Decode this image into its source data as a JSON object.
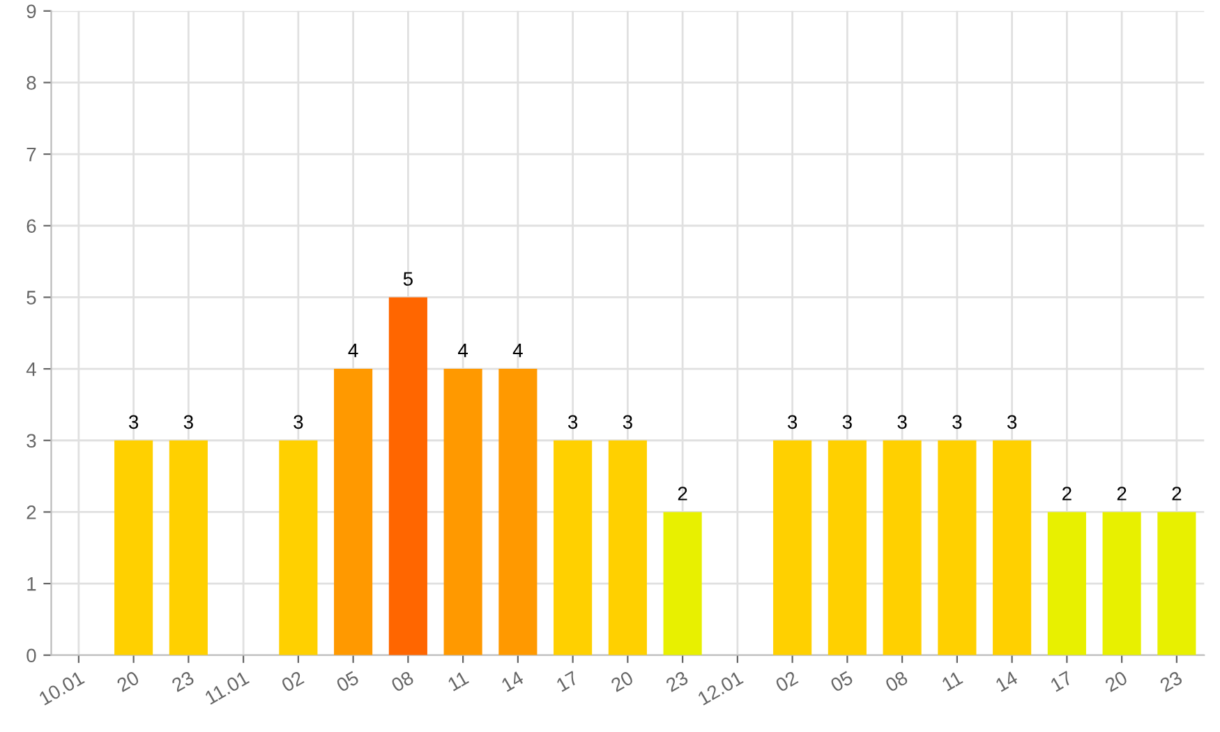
{
  "chart_data": {
    "type": "bar",
    "categories": [
      "10.01",
      "20",
      "23",
      "11.01",
      "02",
      "05",
      "08",
      "11",
      "14",
      "17",
      "20",
      "23",
      "12.01",
      "02",
      "05",
      "08",
      "11",
      "14",
      "17",
      "20",
      "23"
    ],
    "values": [
      null,
      3,
      3,
      null,
      3,
      4,
      5,
      4,
      4,
      3,
      3,
      2,
      null,
      3,
      3,
      3,
      3,
      3,
      2,
      2,
      2
    ],
    "colors": [
      "#ffd000",
      "#ffd000",
      "#ffd000",
      "#ffd000",
      "#ffd000",
      "#ff9900",
      "#ff6600",
      "#ff9900",
      "#ff9900",
      "#ffd000",
      "#ffd000",
      "#e8f000",
      "#ffd000",
      "#ffd000",
      "#ffd000",
      "#ffd000",
      "#ffd000",
      "#ffd000",
      "#e8f000",
      "#e8f000",
      "#e8f000"
    ],
    "ylim": [
      0,
      9
    ],
    "yticks": [
      0,
      1,
      2,
      3,
      4,
      5,
      6,
      7,
      8,
      9
    ],
    "grid": true,
    "data_labels": true
  }
}
